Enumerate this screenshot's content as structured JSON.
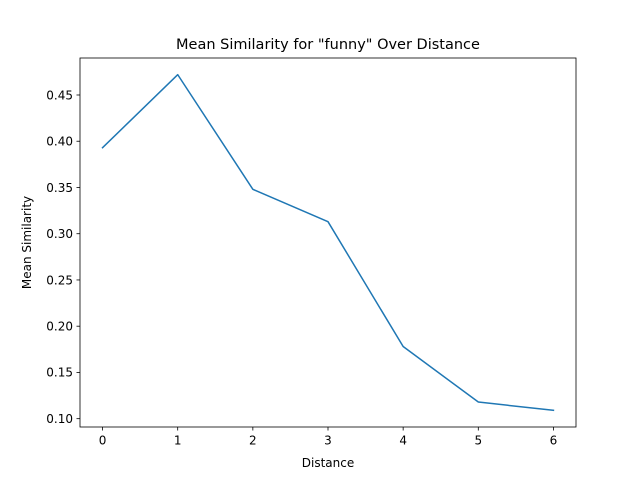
{
  "chart_data": {
    "type": "line",
    "title": "Mean Similarity for \"funny\" Over Distance",
    "xlabel": "Distance",
    "ylabel": "Mean Similarity",
    "x": [
      0,
      1,
      2,
      3,
      4,
      5,
      6
    ],
    "series": [
      {
        "values": [
          0.393,
          0.472,
          0.348,
          0.313,
          0.178,
          0.118,
          0.109
        ],
        "color": "#1f77b4"
      }
    ],
    "xlim": [
      -0.3,
      6.3
    ],
    "ylim": [
      0.091,
      0.49
    ],
    "xticks": [
      0,
      1,
      2,
      3,
      4,
      5,
      6
    ],
    "xtick_labels": [
      "0",
      "1",
      "2",
      "3",
      "4",
      "5",
      "6"
    ],
    "yticks": [
      0.1,
      0.15,
      0.2,
      0.25,
      0.3,
      0.35,
      0.4,
      0.45
    ],
    "ytick_labels": [
      "0.10",
      "0.15",
      "0.20",
      "0.25",
      "0.30",
      "0.35",
      "0.40",
      "0.45"
    ],
    "grid": false,
    "legend": "none"
  }
}
